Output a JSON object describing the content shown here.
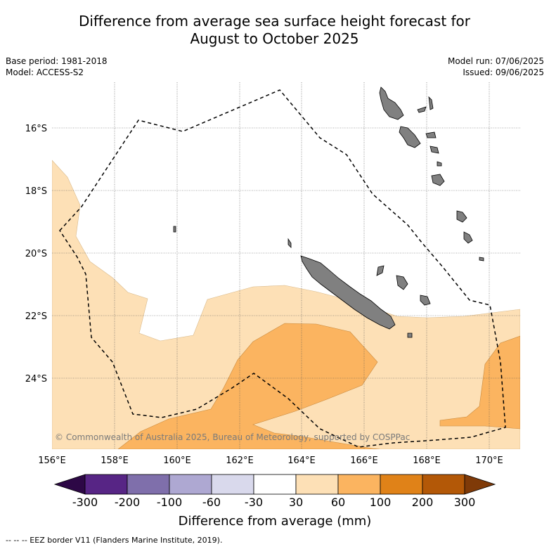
{
  "title": {
    "line1": "Difference from average sea surface height forecast for",
    "line2": "August to October 2025"
  },
  "meta_left": {
    "base_period": "Base period: 1981-2018",
    "model": "Model: ACCESS-S2"
  },
  "meta_right": {
    "model_run": "Model run: 07/06/2025",
    "issued": "Issued: 09/06/2025"
  },
  "map": {
    "lat_ticks": [
      "16°S",
      "18°S",
      "20°S",
      "22°S",
      "24°S"
    ],
    "lon_ticks": [
      "156°E",
      "158°E",
      "160°E",
      "162°E",
      "164°E",
      "166°E",
      "168°E",
      "170°E"
    ],
    "copyright": "© Commonwealth of Australia 2025, Bureau of Meteorology, supported by COSPPac",
    "colors": {
      "land": "#808080",
      "anomaly_30_60": "#fde0b6",
      "anomaly_60_100": "#fbb460"
    }
  },
  "colorbar": {
    "label": "Difference from average (mm)",
    "ticks": [
      "-300",
      "-200",
      "-100",
      "-60",
      "-30",
      "30",
      "60",
      "100",
      "200",
      "300"
    ],
    "colors": {
      "below_min": "#2d0846",
      "segments": [
        "#572585",
        "#7f6fab",
        "#aea8d2",
        "#d9d9ec",
        "#ffffff",
        "#fde0b6",
        "#fbb460",
        "#e08218",
        "#b35807"
      ],
      "above_max": "#7f3a08"
    }
  },
  "footnote": "--  --  -- EEZ border V11 (Flanders Marine Institute, 2019)."
}
